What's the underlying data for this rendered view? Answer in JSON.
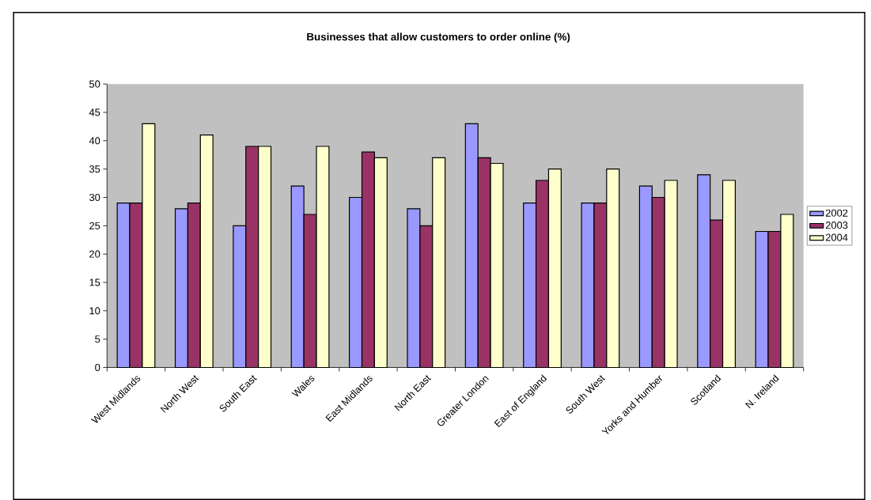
{
  "chart_data": {
    "type": "bar",
    "title": "Businesses that allow customers to order online (%)",
    "categories": [
      "West Midlands",
      "North West",
      "South East",
      "Wales",
      "East Midlands",
      "North East",
      "Greater London",
      "East of England",
      "South West",
      "Yorks and Humber",
      "Scotland",
      "N. Ireland"
    ],
    "series": [
      {
        "name": "2002",
        "color": "#9999ff",
        "values": [
          29,
          28,
          25,
          32,
          30,
          28,
          43,
          29,
          29,
          32,
          34,
          24
        ]
      },
      {
        "name": "2003",
        "color": "#993366",
        "values": [
          29,
          29,
          39,
          27,
          38,
          25,
          37,
          33,
          29,
          30,
          26,
          24
        ]
      },
      {
        "name": "2004",
        "color": "#ffffcc",
        "values": [
          43,
          41,
          39,
          39,
          37,
          37,
          36,
          35,
          35,
          33,
          33,
          27
        ]
      }
    ],
    "ylim": [
      0,
      50
    ],
    "yticks": [
      0,
      5,
      10,
      15,
      20,
      25,
      30,
      35,
      40,
      45,
      50
    ],
    "legend": "right"
  }
}
